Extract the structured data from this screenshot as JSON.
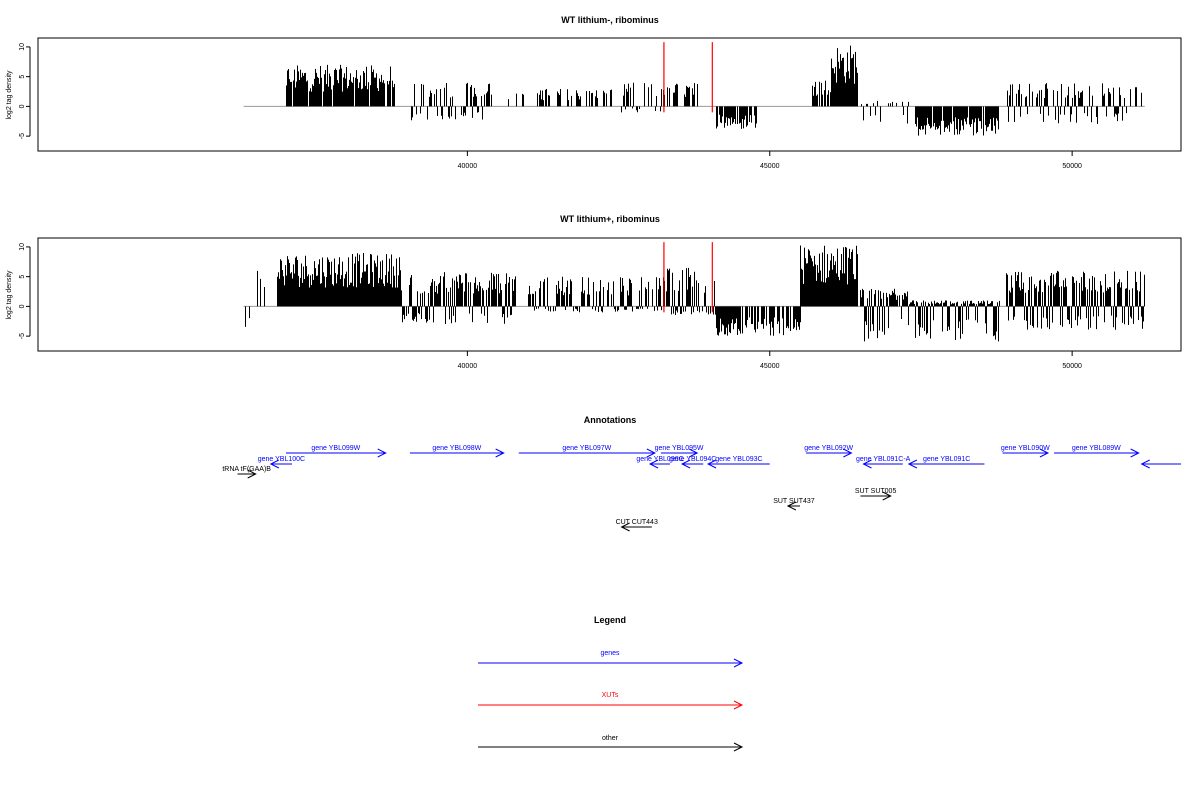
{
  "chart_data": [
    {
      "type": "bar",
      "title": "WT lithium-, ribominus",
      "xlabel": "",
      "ylabel": "log2 tag density",
      "xlim": [
        32900,
        51800
      ],
      "ylim": [
        -7.5,
        11.5
      ],
      "xticks": [
        40000,
        45000,
        50000
      ],
      "yticks": [
        -5,
        0,
        5,
        10
      ],
      "grid": false,
      "baseline_range": [
        36300,
        51200
      ],
      "markers": [
        {
          "x": 43250,
          "color": "#ff0000"
        },
        {
          "x": 44050,
          "color": "#ff0000"
        }
      ],
      "segments": [
        {
          "start": 36500,
          "end": 36720,
          "min": 0,
          "max": 6,
          "density": 0.15
        },
        {
          "start": 37000,
          "end": 38800,
          "min": 0,
          "max": 7,
          "density": 0.9
        },
        {
          "start": 39000,
          "end": 40400,
          "min": -2.5,
          "max": 4,
          "density": 0.6
        },
        {
          "start": 40600,
          "end": 42400,
          "min": 0,
          "max": 3,
          "density": 0.35
        },
        {
          "start": 42500,
          "end": 43300,
          "min": -1,
          "max": 4,
          "density": 0.5
        },
        {
          "start": 43300,
          "end": 43800,
          "min": 0,
          "max": 4,
          "density": 0.5
        },
        {
          "start": 44050,
          "end": 44800,
          "min": -4,
          "max": 0,
          "density": 0.7
        },
        {
          "start": 45600,
          "end": 46000,
          "min": 0,
          "max": 5,
          "density": 0.5
        },
        {
          "start": 46000,
          "end": 46450,
          "min": 0,
          "max": 10.5,
          "density": 1
        },
        {
          "start": 46500,
          "end": 47300,
          "min": -3,
          "max": 1,
          "density": 0.4
        },
        {
          "start": 47400,
          "end": 48800,
          "min": -5,
          "max": 0,
          "density": 0.9
        },
        {
          "start": 48900,
          "end": 51200,
          "min": -3,
          "max": 4,
          "density": 0.55
        }
      ]
    },
    {
      "type": "bar",
      "title": "WT lithium+, ribominus",
      "xlabel": "",
      "ylabel": "log2 tag density",
      "xlim": [
        32900,
        51800
      ],
      "ylim": [
        -7.5,
        11.5
      ],
      "xticks": [
        40000,
        45000,
        50000
      ],
      "yticks": [
        -5,
        0,
        5,
        10
      ],
      "grid": false,
      "baseline_range": [
        36300,
        51200
      ],
      "markers": [
        {
          "x": 43250,
          "color": "#ff0000"
        },
        {
          "x": 44050,
          "color": "#ff0000"
        }
      ],
      "segments": [
        {
          "start": 36300,
          "end": 36400,
          "min": -4,
          "max": 0,
          "density": 0.3
        },
        {
          "start": 36500,
          "end": 36750,
          "min": 0,
          "max": 6,
          "density": 0.2
        },
        {
          "start": 36850,
          "end": 38900,
          "min": 0,
          "max": 9,
          "density": 1
        },
        {
          "start": 38900,
          "end": 40800,
          "min": -3,
          "max": 6,
          "density": 0.9
        },
        {
          "start": 41000,
          "end": 43300,
          "min": -1,
          "max": 5,
          "density": 0.75
        },
        {
          "start": 43300,
          "end": 44100,
          "min": -1.5,
          "max": 6.5,
          "density": 0.9
        },
        {
          "start": 44100,
          "end": 45500,
          "min": -5,
          "max": 0,
          "density": 0.8
        },
        {
          "start": 45500,
          "end": 46450,
          "min": 0,
          "max": 10.5,
          "density": 1
        },
        {
          "start": 46450,
          "end": 47300,
          "min": -6,
          "max": 3,
          "density": 0.9
        },
        {
          "start": 47300,
          "end": 48800,
          "min": -6,
          "max": 1,
          "density": 1
        },
        {
          "start": 48900,
          "end": 51200,
          "min": -4,
          "max": 6,
          "density": 0.95
        }
      ]
    }
  ],
  "annotations": {
    "title": "Annotations",
    "items": [
      {
        "label": "gene YBL099W",
        "start": 37000,
        "end": 38650,
        "dir": "right",
        "color": "#0000ff",
        "row": 0
      },
      {
        "label": "gene YBL098W",
        "start": 39050,
        "end": 40600,
        "dir": "right",
        "color": "#0000ff",
        "row": 0
      },
      {
        "label": "gene YBL097W",
        "start": 40850,
        "end": 43100,
        "dir": "right",
        "color": "#0000ff",
        "row": 0
      },
      {
        "label": "gene YBL095W",
        "start": 43200,
        "end": 43800,
        "dir": "right",
        "color": "#0000ff",
        "row": 0
      },
      {
        "label": "gene YBL092W",
        "start": 45600,
        "end": 46350,
        "dir": "right",
        "color": "#0000ff",
        "row": 0
      },
      {
        "label": "gene YBL090W",
        "start": 48850,
        "end": 49600,
        "dir": "right",
        "color": "#0000ff",
        "row": 0
      },
      {
        "label": "gene YBL089W",
        "start": 49700,
        "end": 51100,
        "dir": "right",
        "color": "#0000ff",
        "row": 0
      },
      {
        "label": "",
        "start": 51150,
        "end": 51800,
        "dir": "left",
        "color": "#0000ff",
        "row": 1
      },
      {
        "label": "gene YBL100C",
        "start": 36750,
        "end": 37100,
        "dir": "left",
        "color": "#0000ff",
        "row": 1
      },
      {
        "label": "gene YBL096C",
        "start": 43020,
        "end": 43350,
        "dir": "left",
        "color": "#0000ff",
        "row": 1
      },
      {
        "label": "gene YBL094C",
        "start": 43550,
        "end": 43900,
        "dir": "left",
        "color": "#0000ff",
        "row": 1
      },
      {
        "label": "gene YBL093C",
        "start": 43980,
        "end": 45000,
        "dir": "left",
        "color": "#0000ff",
        "row": 1
      },
      {
        "label": "gene YBL091C-A",
        "start": 46550,
        "end": 47200,
        "dir": "left",
        "color": "#0000ff",
        "row": 1
      },
      {
        "label": "gene YBL091C",
        "start": 47300,
        "end": 48550,
        "dir": "left",
        "color": "#0000ff",
        "row": 1
      },
      {
        "label": "tRNA tF(GAA)B",
        "start": 36200,
        "end": 36500,
        "dir": "right",
        "color": "#000000",
        "row": 2
      },
      {
        "label": "SUT SUT005",
        "start": 46500,
        "end": 47000,
        "dir": "right",
        "color": "#000000",
        "row": 3
      },
      {
        "label": "SUT SUT437",
        "start": 45300,
        "end": 45500,
        "dir": "left",
        "color": "#000000",
        "row": 4
      },
      {
        "label": "CUT CUT443",
        "start": 42550,
        "end": 43050,
        "dir": "left",
        "color": "#000000",
        "row": 5
      }
    ]
  },
  "legend": {
    "title": "Legend",
    "entries": [
      {
        "label": "genes",
        "color": "#0000ff"
      },
      {
        "label": "XUTs",
        "color": "#ff0000"
      },
      {
        "label": "other",
        "color": "#000000"
      }
    ]
  }
}
